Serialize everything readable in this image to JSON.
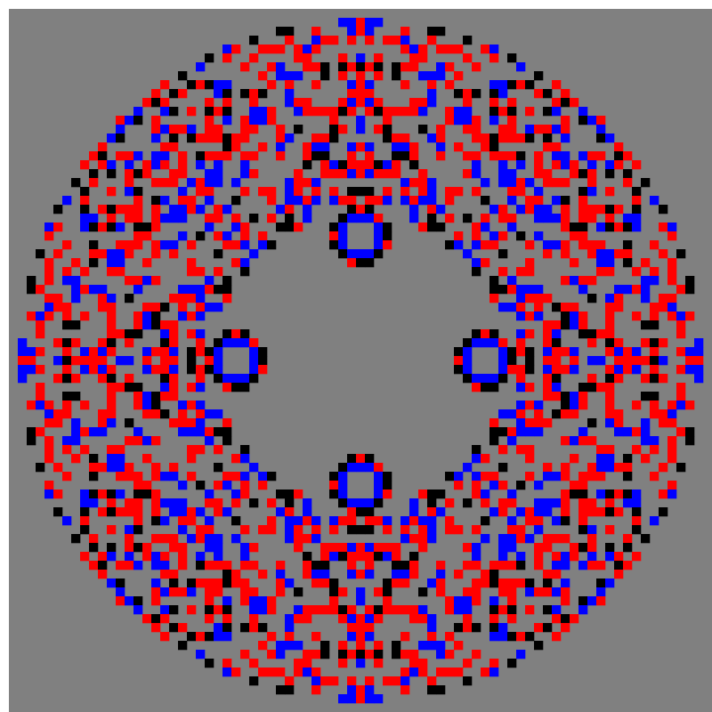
{
  "pattern": {
    "grid_cells": 79,
    "symmetry": "4-fold mirror",
    "colors": {
      "background": "#ffffff",
      "field": "#808080",
      "red": "#ff0000",
      "blue": "#0000ff",
      "black": "#000000"
    },
    "seed": 20240601,
    "density": {
      "inner_radius": 0.42,
      "outer_radius": 0.98,
      "red": 0.24,
      "blue": 0.14,
      "black": 0.07
    },
    "motifs": [
      {
        "name": "ring-top",
        "cx": 0,
        "cy": -14
      },
      {
        "name": "ring-bottom",
        "cx": 0,
        "cy": 14
      },
      {
        "name": "ring-left",
        "cx": -14,
        "cy": 0
      },
      {
        "name": "ring-right",
        "cx": 14,
        "cy": 0
      }
    ]
  }
}
